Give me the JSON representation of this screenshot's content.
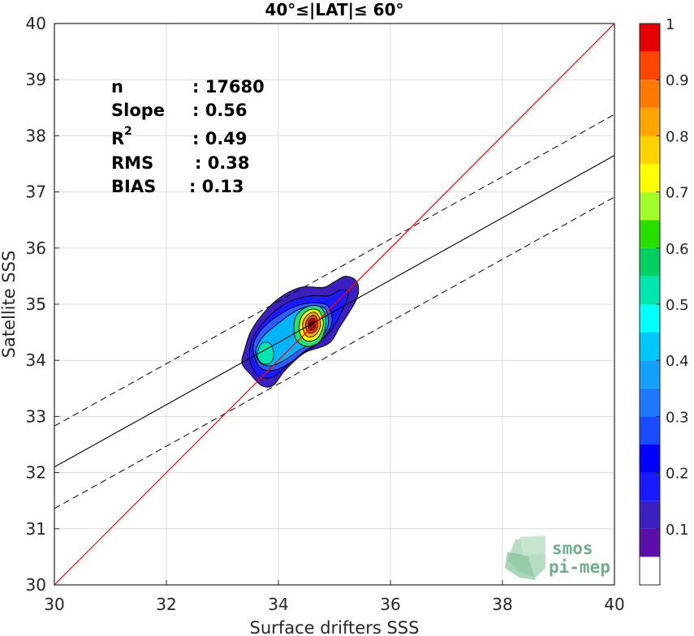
{
  "chart_data": {
    "type": "contour-scatter",
    "title": "40°≤|LAT|≤ 60°",
    "xlabel": "Surface drifters SSS",
    "ylabel": "Satellite SSS",
    "xlim": [
      30,
      40
    ],
    "ylim": [
      30,
      40
    ],
    "xticks": [
      30,
      32,
      34,
      36,
      38,
      40
    ],
    "yticks": [
      30,
      31,
      32,
      33,
      34,
      35,
      36,
      37,
      38,
      39,
      40
    ],
    "grid": true,
    "stats": {
      "n_label": "n",
      "n_value": ": 17680",
      "slope_label": "Slope",
      "slope_value": ": 0.56",
      "r2_label": "R",
      "r2_sup": "2",
      "r2_value": ": 0.49",
      "rms_label": "RMS",
      "rms_value": ": 0.38",
      "bias_label": "BIAS",
      "bias_value": ": 0.13"
    },
    "one_to_one_line": {
      "x": [
        30,
        40
      ],
      "y": [
        30,
        40
      ],
      "color": "#ff0000"
    },
    "regression_line": {
      "x": [
        30,
        40
      ],
      "y": [
        32.1,
        37.65
      ],
      "color": "#000000"
    },
    "confidence_lines": [
      {
        "x": [
          30,
          40
        ],
        "y": [
          32.83,
          38.38
        ],
        "style": "dashed"
      },
      {
        "x": [
          30,
          40
        ],
        "y": [
          31.36,
          36.91
        ],
        "style": "dashed"
      }
    ],
    "density_contours": [
      {
        "level": 0.05,
        "color": "#3c1fbf",
        "points": [
          [
            33.4,
            34.2
          ],
          [
            33.5,
            34.5
          ],
          [
            33.7,
            34.8
          ],
          [
            34.0,
            35.1
          ],
          [
            34.4,
            35.3
          ],
          [
            34.8,
            35.3
          ],
          [
            35.0,
            35.4
          ],
          [
            35.2,
            35.5
          ],
          [
            35.4,
            35.4
          ],
          [
            35.4,
            35.1
          ],
          [
            35.1,
            34.6
          ],
          [
            34.9,
            34.3
          ],
          [
            34.5,
            34.15
          ],
          [
            34.3,
            34.0
          ],
          [
            34.1,
            33.8
          ],
          [
            33.9,
            33.55
          ],
          [
            33.7,
            33.55
          ],
          [
            33.5,
            33.75
          ],
          [
            33.35,
            33.95
          ]
        ]
      },
      {
        "level": 0.1,
        "color": "#1a1aff",
        "points": [
          [
            33.5,
            34.25
          ],
          [
            33.6,
            34.5
          ],
          [
            33.85,
            34.8
          ],
          [
            34.2,
            35.05
          ],
          [
            34.6,
            35.15
          ],
          [
            34.9,
            35.15
          ],
          [
            35.1,
            35.25
          ],
          [
            35.25,
            35.2
          ],
          [
            35.15,
            34.9
          ],
          [
            34.95,
            34.55
          ],
          [
            34.7,
            34.3
          ],
          [
            34.4,
            34.1
          ],
          [
            34.15,
            33.9
          ],
          [
            33.9,
            33.7
          ],
          [
            33.65,
            33.72
          ],
          [
            33.5,
            33.95
          ]
        ]
      },
      {
        "level": 0.2,
        "color": "#2e5cff",
        "points": [
          [
            33.55,
            34.25
          ],
          [
            33.7,
            34.55
          ],
          [
            34.0,
            34.8
          ],
          [
            34.35,
            34.98
          ],
          [
            34.7,
            35.02
          ],
          [
            34.9,
            34.95
          ],
          [
            34.95,
            34.65
          ],
          [
            34.75,
            34.35
          ],
          [
            34.45,
            34.15
          ],
          [
            34.2,
            33.95
          ],
          [
            33.9,
            33.82
          ],
          [
            33.65,
            33.9
          ]
        ]
      },
      {
        "level": 0.3,
        "color": "#00b4ff",
        "points": [
          [
            33.6,
            34.2
          ],
          [
            33.75,
            34.45
          ],
          [
            34.05,
            34.7
          ],
          [
            34.35,
            34.9
          ],
          [
            34.65,
            34.97
          ],
          [
            34.85,
            34.9
          ],
          [
            34.88,
            34.6
          ],
          [
            34.7,
            34.35
          ],
          [
            34.4,
            34.2
          ],
          [
            34.1,
            34.0
          ],
          [
            33.85,
            33.9
          ],
          [
            33.65,
            33.98
          ]
        ]
      },
      {
        "level": 0.4,
        "color": "#00e6b0",
        "points": [
          [
            33.62,
            34.1
          ],
          [
            33.7,
            34.3
          ],
          [
            33.85,
            34.3
          ],
          [
            33.92,
            34.1
          ],
          [
            33.85,
            33.95
          ],
          [
            33.7,
            33.95
          ]
        ]
      },
      {
        "level": 0.4,
        "color": "#28e070",
        "points": [
          [
            34.3,
            34.75
          ],
          [
            34.5,
            34.95
          ],
          [
            34.75,
            34.95
          ],
          [
            34.85,
            34.7
          ],
          [
            34.75,
            34.35
          ],
          [
            34.5,
            34.25
          ],
          [
            34.3,
            34.4
          ]
        ]
      },
      {
        "level": 0.6,
        "color": "#ffff00",
        "points": [
          [
            34.4,
            34.75
          ],
          [
            34.55,
            34.9
          ],
          [
            34.72,
            34.88
          ],
          [
            34.8,
            34.65
          ],
          [
            34.7,
            34.4
          ],
          [
            34.5,
            34.35
          ],
          [
            34.38,
            34.5
          ]
        ]
      },
      {
        "level": 0.7,
        "color": "#ffa500",
        "points": [
          [
            34.45,
            34.72
          ],
          [
            34.58,
            34.85
          ],
          [
            34.7,
            34.82
          ],
          [
            34.75,
            34.62
          ],
          [
            34.66,
            34.45
          ],
          [
            34.52,
            34.42
          ],
          [
            34.44,
            34.55
          ]
        ]
      },
      {
        "level": 0.8,
        "color": "#ff4500",
        "points": [
          [
            34.5,
            34.7
          ],
          [
            34.6,
            34.8
          ],
          [
            34.68,
            34.76
          ],
          [
            34.7,
            34.6
          ],
          [
            34.63,
            34.5
          ],
          [
            34.53,
            34.5
          ],
          [
            34.49,
            34.6
          ]
        ]
      },
      {
        "level": 0.9,
        "color": "#e60000",
        "points": [
          [
            34.54,
            34.68
          ],
          [
            34.61,
            34.75
          ],
          [
            34.66,
            34.7
          ],
          [
            34.66,
            34.6
          ],
          [
            34.61,
            34.54
          ],
          [
            34.55,
            34.56
          ]
        ]
      },
      {
        "level": 1.0,
        "color": "#8b0000",
        "points": [
          [
            34.57,
            34.66
          ],
          [
            34.62,
            34.7
          ],
          [
            34.64,
            34.64
          ],
          [
            34.61,
            34.58
          ],
          [
            34.57,
            34.6
          ]
        ]
      }
    ],
    "colorbar": {
      "levels": [
        0,
        0.05,
        0.1,
        0.15,
        0.2,
        0.25,
        0.3,
        0.35,
        0.4,
        0.45,
        0.5,
        0.55,
        0.6,
        0.65,
        0.7,
        0.75,
        0.8,
        0.85,
        0.9,
        0.95,
        1.0
      ],
      "colors": [
        "#ffffff",
        "#5a0fa8",
        "#3c1fbf",
        "#1a1aff",
        "#0000ff",
        "#1a4cff",
        "#1e78ff",
        "#14a0ff",
        "#00c8ff",
        "#00ffff",
        "#00e6b0",
        "#00d060",
        "#28e000",
        "#a0ff28",
        "#ffff00",
        "#ffd200",
        "#ffa500",
        "#ff7800",
        "#ff4500",
        "#e60000",
        "#8b0000"
      ],
      "tick_values": [
        0.1,
        0.2,
        0.3,
        0.4,
        0.5,
        0.6,
        0.7,
        0.8,
        0.9,
        1
      ],
      "tick_labels": [
        "0.1",
        "0.2",
        "0.3",
        "0.4",
        "0.5",
        "0.6",
        "0.7",
        "0.8",
        "0.9",
        "1"
      ]
    },
    "logo": {
      "line1": "smos",
      "line2": "pi-mep"
    }
  }
}
